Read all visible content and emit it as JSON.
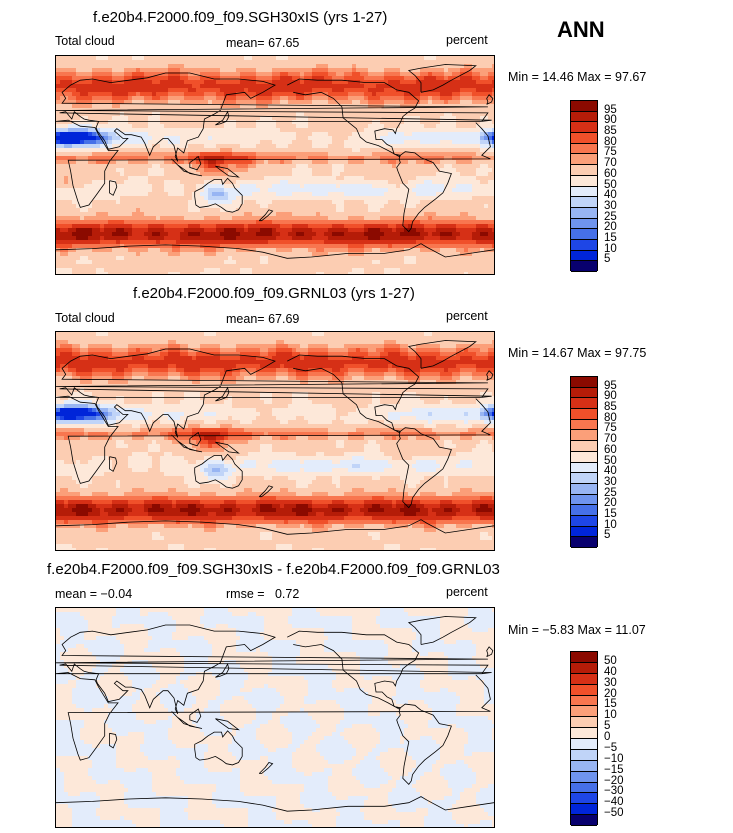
{
  "season": "ANN",
  "colors": {
    "abs_levels": [
      "#08006e",
      "#0025d9",
      "#1e46e6",
      "#4670e8",
      "#6f94ee",
      "#98b5f3",
      "#c0d4f8",
      "#e3ecfb",
      "#fde8d9",
      "#fccdb2",
      "#fb9f79",
      "#f8764f",
      "#f0502a",
      "#d63016",
      "#b51c08",
      "#8b0a00"
    ],
    "diff_levels": [
      "#08006e",
      "#0025d9",
      "#1e46e6",
      "#4670e8",
      "#6f94ee",
      "#98b5f3",
      "#c0d4f8",
      "#e3ecfb",
      "#fde8d9",
      "#fccdb2",
      "#fb9f79",
      "#f8764f",
      "#f0502a",
      "#d63016",
      "#b51c08",
      "#8b0a00"
    ]
  },
  "chart_data": [
    {
      "type": "heatmap",
      "title": "f.e20b4.F2000.f09_f09.SGH30xIS (yrs 1-27)",
      "left_label": "Total cloud",
      "mean_label": "mean=",
      "mean_value": "67.65",
      "units": "percent",
      "min_label": "Min =",
      "min_value": "14.46",
      "max_label": "Max =",
      "max_value": "97.67",
      "contour_levels": [
        "5",
        "10",
        "15",
        "20",
        "25",
        "30",
        "40",
        "50",
        "60",
        "70",
        "75",
        "80",
        "85",
        "90",
        "95"
      ]
    },
    {
      "type": "heatmap",
      "title": "f.e20b4.F2000.f09_f09.GRNL03 (yrs 1-27)",
      "left_label": "Total cloud",
      "mean_label": "mean=",
      "mean_value": "67.69",
      "units": "percent",
      "min_label": "Min =",
      "min_value": "14.67",
      "max_label": "Max =",
      "max_value": "97.75",
      "contour_levels": [
        "5",
        "10",
        "15",
        "20",
        "25",
        "30",
        "40",
        "50",
        "60",
        "70",
        "75",
        "80",
        "85",
        "90",
        "95"
      ]
    },
    {
      "type": "heatmap",
      "title": "f.e20b4.F2000.f09_f09.SGH30xIS - f.e20b4.F2000.f09_f09.GRNL03",
      "left_label": "mean =",
      "mean_label": "",
      "mean_value": "−0.04",
      "rmse_label": "rmse =",
      "rmse_value": "0.72",
      "units": "percent",
      "min_label": "Min =",
      "min_value": "−5.83",
      "max_label": "Max =",
      "max_value": "11.07",
      "contour_levels": [
        "−50",
        "−40",
        "−30",
        "−20",
        "−15",
        "−10",
        "−5",
        "0",
        "5",
        "10",
        "15",
        "20",
        "30",
        "40",
        "50"
      ]
    }
  ]
}
